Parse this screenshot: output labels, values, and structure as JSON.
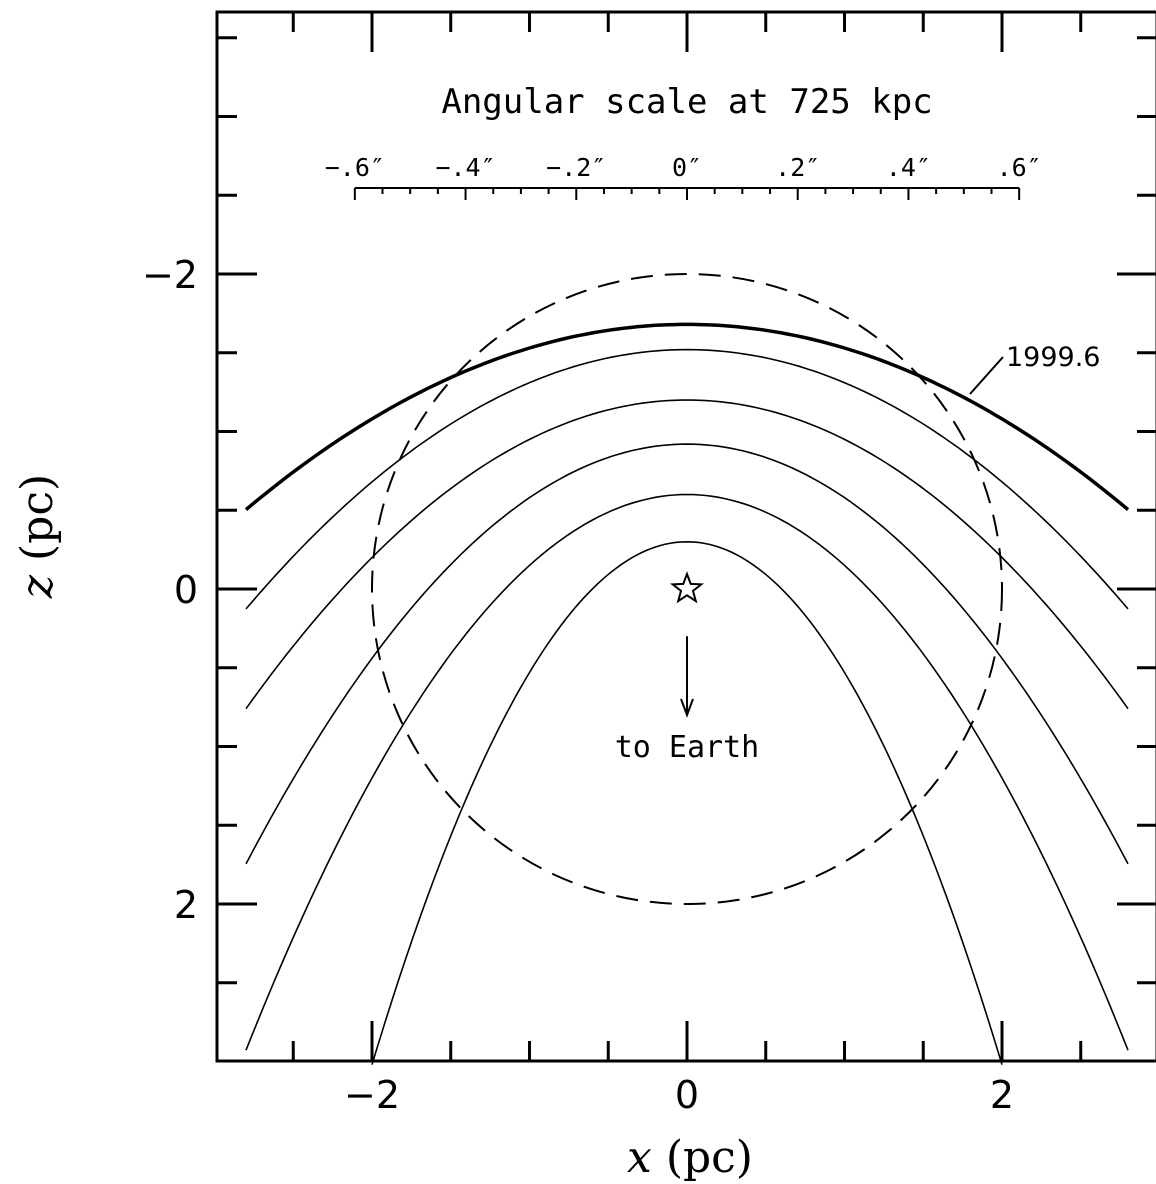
{
  "chart_data": {
    "type": "line",
    "xlabel": "x (pc)",
    "ylabel": "z (pc)",
    "xlim": [
      -3.0,
      3.0
    ],
    "ylim": [
      -3.7,
      3.0
    ],
    "y_inverted": true,
    "x_ticks": [
      -2,
      0,
      2
    ],
    "x_tick_labels": [
      "−2",
      "0",
      "2"
    ],
    "y_ticks": [
      -2,
      0,
      2
    ],
    "y_tick_labels": [
      "−2",
      "0",
      "2"
    ],
    "minor_step": 0.5,
    "grid": false,
    "series": [
      {
        "style": "solid-thick",
        "a": 0.15,
        "b": 1.68,
        "x_range": [
          -2.8,
          2.8
        ]
      },
      {
        "style": "solid",
        "a": 0.21,
        "b": 1.52,
        "x_range": [
          -2.8,
          2.8
        ]
      },
      {
        "style": "solid",
        "a": 0.25,
        "b": 1.2,
        "x_range": [
          -2.8,
          2.8
        ]
      },
      {
        "style": "solid",
        "a": 0.34,
        "b": 0.92,
        "x_range": [
          -2.8,
          2.8
        ]
      },
      {
        "style": "solid",
        "a": 0.45,
        "b": 0.6,
        "x_range": [
          -2.8,
          2.8
        ]
      },
      {
        "style": "solid",
        "a": 0.83,
        "b": 0.3,
        "x_range": [
          -2.0,
          2.0
        ]
      }
    ],
    "circle": {
      "style": "dashed",
      "center": [
        0,
        0
      ],
      "radius": 2.0
    },
    "star": {
      "x": 0,
      "z": 0
    },
    "earth_arrow": {
      "from": [
        0,
        -0.3
      ],
      "to": [
        0,
        -0.8
      ]
    },
    "top_scale": {
      "title": "Angular scale at 725 kpc",
      "tick_labels": [
        "−.6″",
        "−.4″",
        "−.2″",
        "0″",
        ".2″",
        ".4″",
        ".6″"
      ],
      "arcsec_values": [
        -0.6,
        -0.4,
        -0.2,
        0,
        0.2,
        0.4,
        0.6
      ],
      "pc_per_arcsec": 3.515
    },
    "annotations": {
      "epoch_label": "1999.6",
      "earth_label": "to Earth"
    }
  }
}
